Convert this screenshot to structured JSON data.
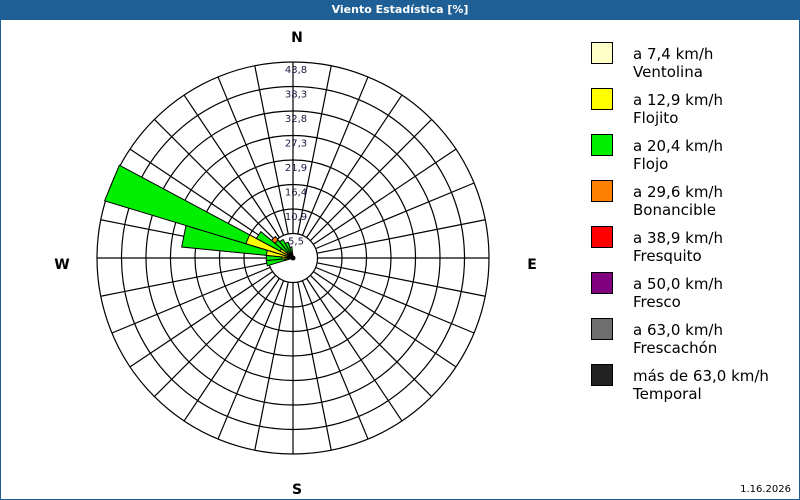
{
  "window": {
    "title": "Viento Estadística [%]"
  },
  "footer": {
    "version": "1.16.2026"
  },
  "chart_data": {
    "type": "windrose",
    "title": "Viento Estadística [%]",
    "unit": "%",
    "compass": {
      "N": "N",
      "E": "E",
      "S": "S",
      "W": "W"
    },
    "radial_ticks": [
      "5,5",
      "10,9",
      "16,4",
      "21,9",
      "27,3",
      "32,8",
      "38,3",
      "43,8"
    ],
    "radial_max": 43.8,
    "directions_count": 32,
    "categories": [
      {
        "label": "a 7,4 km/h",
        "name": "Ventolina",
        "color": "#ffffc8"
      },
      {
        "label": "a 12,9 km/h",
        "name": "Flojito",
        "color": "#ffff00"
      },
      {
        "label": "a 20,4 km/h",
        "name": "Flojo",
        "color": "#00ee00"
      },
      {
        "label": "a 29,6 km/h",
        "name": "Bonancible",
        "color": "#ff8000"
      },
      {
        "label": "a 38,9 km/h",
        "name": "Fresquito",
        "color": "#ff0000"
      },
      {
        "label": "a 50,0 km/h",
        "name": "Fresco",
        "color": "#800080"
      },
      {
        "label": "a 63,0 km/h",
        "name": "Frescachón",
        "color": "#6e6e6e"
      },
      {
        "label": "más de 63,0 km/h",
        "name": "Temporal",
        "color": "#222222"
      }
    ],
    "sectors": [
      {
        "direction_deg": 258.75,
        "values": [
          0.3,
          1.5,
          4.2,
          0,
          0,
          0,
          0,
          0
        ]
      },
      {
        "direction_deg": 270,
        "values": [
          0.3,
          2.2,
          3.5,
          0,
          0,
          0,
          0,
          0
        ]
      },
      {
        "direction_deg": 281.25,
        "values": [
          0.3,
          5.7,
          19.0,
          0,
          0,
          0,
          0,
          0
        ]
      },
      {
        "direction_deg": 292.5,
        "values": [
          0.3,
          10.7,
          33.0,
          0,
          0,
          0,
          0,
          0
        ]
      },
      {
        "direction_deg": 303.75,
        "values": [
          0.3,
          3.0,
          6.0,
          0,
          0,
          0,
          0,
          0
        ]
      },
      {
        "direction_deg": 315,
        "values": [
          0.2,
          1.5,
          3.5,
          1.0,
          0,
          0,
          0,
          0
        ]
      },
      {
        "direction_deg": 326.25,
        "values": [
          0.2,
          1.0,
          3.5,
          0,
          0,
          0,
          0,
          0
        ]
      },
      {
        "direction_deg": 337.5,
        "values": [
          0.2,
          1.0,
          2.5,
          0,
          0,
          0,
          0,
          0
        ]
      },
      {
        "direction_deg": 348.75,
        "values": [
          0.2,
          0.8,
          1.5,
          0,
          0,
          0,
          0,
          0
        ]
      }
    ]
  }
}
